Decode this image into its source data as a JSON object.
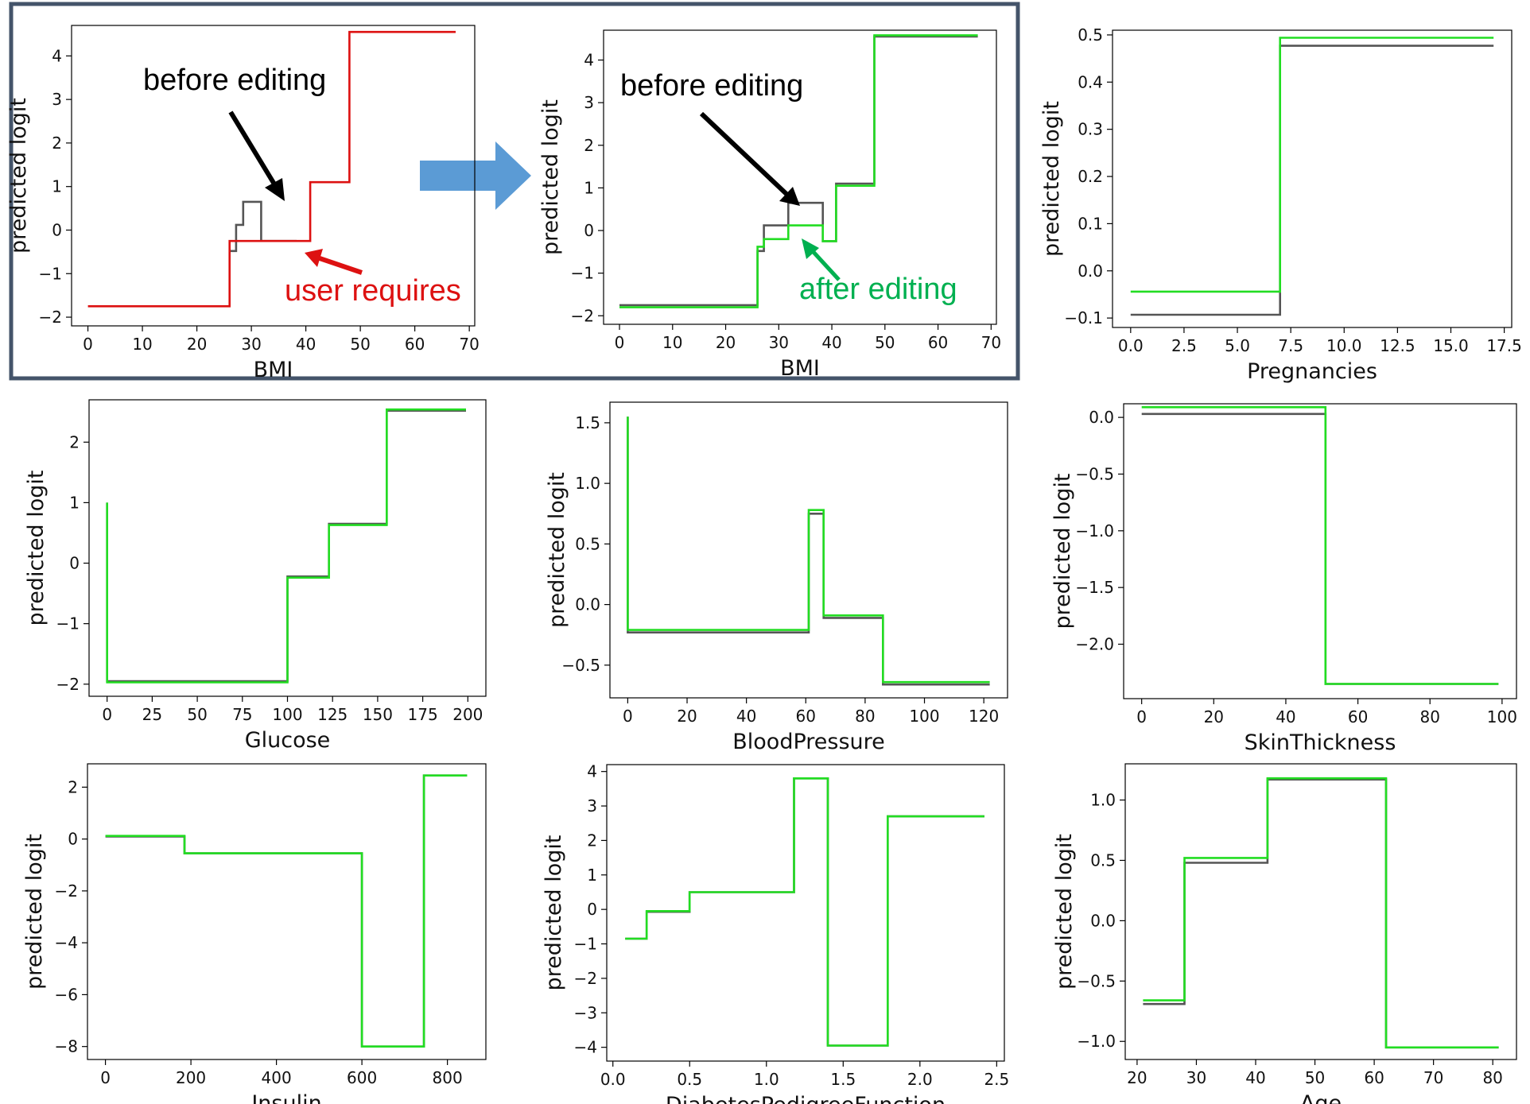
{
  "colors": {
    "before": "#555555",
    "after": "#22dd22",
    "user": "#dd1111",
    "black_arrow": "#000000",
    "green_annot": "#00b050",
    "red_annot": "#dd1111",
    "frame": "#44546a",
    "big_arrow": "#5b9bd5"
  },
  "chart_data": [
    {
      "id": "bmi_user",
      "type": "line",
      "xlabel": "BMI",
      "ylabel": "predicted logit",
      "xlim": [
        -3,
        71
      ],
      "ylim": [
        -2.2,
        4.7
      ],
      "xticks": [
        0,
        10,
        20,
        30,
        40,
        50,
        60,
        70
      ],
      "yticks": [
        -2,
        -1,
        0,
        1,
        2,
        3,
        4
      ],
      "series": [
        {
          "name": "before editing",
          "color_key": "before",
          "x": [
            26,
            27.2,
            27.2,
            28.5,
            28.5,
            31.8,
            31.8,
            38.3
          ],
          "y": [
            -0.48,
            -0.48,
            0.12,
            0.12,
            0.65,
            0.65,
            -0.25,
            -0.25
          ]
        },
        {
          "name": "user requires",
          "color_key": "user",
          "x": [
            0,
            26,
            26,
            38.3,
            38.3,
            40.8,
            40.8,
            48,
            48,
            67.5
          ],
          "y": [
            -1.75,
            -1.75,
            -0.25,
            -0.25,
            -0.25,
            -0.25,
            1.1,
            1.1,
            4.55,
            4.55
          ]
        }
      ],
      "annotations": [
        {
          "text": "before editing",
          "color_key": "black_arrow"
        },
        {
          "text": "user requires",
          "color_key": "red_annot"
        }
      ]
    },
    {
      "id": "bmi_edited",
      "type": "line",
      "xlabel": "BMI",
      "ylabel": "predicted logit",
      "xlim": [
        -3,
        71
      ],
      "ylim": [
        -2.2,
        4.7
      ],
      "xticks": [
        0,
        10,
        20,
        30,
        40,
        50,
        60,
        70
      ],
      "yticks": [
        -2,
        -1,
        0,
        1,
        2,
        3,
        4
      ],
      "series": [
        {
          "name": "before editing",
          "color_key": "before",
          "x": [
            0,
            26,
            26,
            27.2,
            27.2,
            28.5,
            28.5,
            31.8,
            31.8,
            38.3,
            38.3,
            40.8,
            40.8,
            48,
            48,
            67.5
          ],
          "y": [
            -1.75,
            -1.75,
            -0.48,
            -0.48,
            0.12,
            0.12,
            0.12,
            0.12,
            0.65,
            0.65,
            -0.25,
            -0.25,
            1.1,
            1.1,
            4.55,
            4.55
          ]
        },
        {
          "name": "after editing",
          "color_key": "after",
          "x": [
            0,
            26,
            26,
            27.2,
            27.2,
            28.5,
            28.5,
            31.8,
            31.8,
            38.3,
            38.3,
            40.8,
            40.8,
            48,
            48,
            67.5
          ],
          "y": [
            -1.8,
            -1.8,
            -0.38,
            -0.38,
            -0.2,
            -0.2,
            -0.2,
            -0.2,
            0.12,
            0.12,
            -0.25,
            -0.25,
            1.05,
            1.05,
            4.58,
            4.58
          ]
        }
      ],
      "annotations": [
        {
          "text": "before editing",
          "color_key": "black_arrow"
        },
        {
          "text": "after editing",
          "color_key": "green_annot"
        }
      ]
    },
    {
      "id": "pregnancies",
      "type": "line",
      "xlabel": "Pregnancies",
      "ylabel": "predicted logit",
      "xlim": [
        -0.85,
        17.85
      ],
      "ylim": [
        -0.12,
        0.51
      ],
      "xticks": [
        0.0,
        2.5,
        5.0,
        7.5,
        10.0,
        12.5,
        15.0,
        17.5
      ],
      "xtick_labels": [
        "0.0",
        "2.5",
        "5.0",
        "7.5",
        "10.0",
        "12.5",
        "15.0",
        "17.5"
      ],
      "yticks": [
        -0.1,
        0.0,
        0.1,
        0.2,
        0.3,
        0.4,
        0.5
      ],
      "ytick_labels": [
        "−0.1",
        "0.0",
        "0.1",
        "0.2",
        "0.3",
        "0.4",
        "0.5"
      ],
      "series": [
        {
          "name": "before editing",
          "color_key": "before",
          "x": [
            0,
            7,
            7,
            17
          ],
          "y": [
            -0.093,
            -0.093,
            0.477,
            0.477
          ]
        },
        {
          "name": "after editing",
          "color_key": "after",
          "x": [
            0,
            7,
            7,
            17
          ],
          "y": [
            -0.044,
            -0.044,
            0.494,
            0.494
          ]
        }
      ]
    },
    {
      "id": "glucose",
      "type": "line",
      "xlabel": "Glucose",
      "ylabel": "predicted logit",
      "xlim": [
        -10,
        210
      ],
      "ylim": [
        -2.2,
        2.7
      ],
      "xticks": [
        0,
        25,
        50,
        75,
        100,
        125,
        150,
        175,
        200
      ],
      "yticks": [
        -2,
        -1,
        0,
        1,
        2
      ],
      "series": [
        {
          "name": "before editing",
          "color_key": "before",
          "x": [
            0,
            0,
            100,
            100,
            123,
            123,
            155,
            155,
            199
          ],
          "y": [
            1.0,
            -1.95,
            -1.95,
            -0.22,
            -0.22,
            0.65,
            0.65,
            2.52,
            2.52
          ]
        },
        {
          "name": "after editing",
          "color_key": "after",
          "x": [
            0,
            0,
            100,
            100,
            123,
            123,
            155,
            155,
            199
          ],
          "y": [
            1.0,
            -1.97,
            -1.97,
            -0.24,
            -0.24,
            0.63,
            0.63,
            2.54,
            2.54
          ]
        }
      ]
    },
    {
      "id": "bloodpressure",
      "type": "line",
      "xlabel": "BloodPressure",
      "ylabel": "predicted logit",
      "xlim": [
        -6,
        128
      ],
      "ylim": [
        -0.77,
        1.67
      ],
      "xticks": [
        0,
        20,
        40,
        60,
        80,
        100,
        120
      ],
      "yticks": [
        -0.5,
        0.0,
        0.5,
        1.0,
        1.5
      ],
      "ytick_labels": [
        "−0.5",
        "0.0",
        "0.5",
        "1.0",
        "1.5"
      ],
      "series": [
        {
          "name": "before editing",
          "color_key": "before",
          "x": [
            0,
            0,
            61,
            61,
            66,
            66,
            86,
            86,
            122
          ],
          "y": [
            1.55,
            -0.23,
            -0.23,
            0.75,
            0.75,
            -0.11,
            -0.11,
            -0.66,
            -0.66
          ]
        },
        {
          "name": "after editing",
          "color_key": "after",
          "x": [
            0,
            0,
            61,
            61,
            66,
            66,
            86,
            86,
            122
          ],
          "y": [
            1.55,
            -0.21,
            -0.21,
            0.78,
            0.78,
            -0.09,
            -0.09,
            -0.64,
            -0.64
          ]
        }
      ]
    },
    {
      "id": "skinthickness",
      "type": "line",
      "xlabel": "SkinThickness",
      "ylabel": "predicted logit",
      "xlim": [
        -5,
        104
      ],
      "ylim": [
        -2.48,
        0.12
      ],
      "xticks": [
        0,
        20,
        40,
        60,
        80,
        100
      ],
      "yticks": [
        -2.0,
        -1.5,
        -1.0,
        -0.5,
        0.0
      ],
      "ytick_labels": [
        "−2.0",
        "−1.5",
        "−1.0",
        "−0.5",
        "0.0"
      ],
      "series": [
        {
          "name": "before editing",
          "color_key": "before",
          "x": [
            0,
            51,
            51,
            99
          ],
          "y": [
            0.03,
            0.03,
            -2.35,
            -2.35
          ]
        },
        {
          "name": "after editing",
          "color_key": "after",
          "x": [
            0,
            51,
            51,
            99
          ],
          "y": [
            0.09,
            0.09,
            -2.35,
            -2.35
          ]
        }
      ]
    },
    {
      "id": "insulin",
      "type": "line",
      "xlabel": "Insulin",
      "ylabel": "predicted logit",
      "xlim": [
        -42,
        890
      ],
      "ylim": [
        -8.5,
        2.9
      ],
      "xticks": [
        0,
        200,
        400,
        600,
        800
      ],
      "yticks": [
        -8,
        -6,
        -4,
        -2,
        0,
        2
      ],
      "series": [
        {
          "name": "before editing",
          "color_key": "before",
          "x": [
            0,
            185,
            185,
            600,
            600,
            745,
            745,
            846
          ],
          "y": [
            0.1,
            0.1,
            -0.55,
            -0.55,
            -8.0,
            -8.0,
            2.45,
            2.45
          ]
        },
        {
          "name": "after editing",
          "color_key": "after",
          "x": [
            0,
            185,
            185,
            600,
            600,
            745,
            745,
            846
          ],
          "y": [
            0.12,
            0.12,
            -0.55,
            -0.55,
            -8.0,
            -8.0,
            2.45,
            2.45
          ]
        }
      ]
    },
    {
      "id": "dpf",
      "type": "line",
      "xlabel": "DiabetesPedigreeFunction",
      "ylabel": "predicted logit",
      "xlim": [
        -0.04,
        2.55
      ],
      "ylim": [
        -4.4,
        4.2
      ],
      "xticks": [
        0.0,
        0.5,
        1.0,
        1.5,
        2.0,
        2.5
      ],
      "xtick_labels": [
        "0.0",
        "0.5",
        "1.0",
        "1.5",
        "2.0",
        "2.5"
      ],
      "yticks": [
        -4,
        -3,
        -2,
        -1,
        0,
        1,
        2,
        3,
        4
      ],
      "series": [
        {
          "name": "before editing",
          "color_key": "before",
          "x": [
            0.08,
            0.22,
            0.22,
            0.5,
            0.5,
            1.18,
            1.18,
            1.4,
            1.4,
            1.79,
            1.79,
            2.42
          ],
          "y": [
            -0.85,
            -0.85,
            -0.07,
            -0.07,
            0.5,
            0.5,
            3.8,
            3.8,
            -3.95,
            -3.95,
            2.7,
            2.7
          ]
        },
        {
          "name": "after editing",
          "color_key": "after",
          "x": [
            0.08,
            0.22,
            0.22,
            0.5,
            0.5,
            1.18,
            1.18,
            1.4,
            1.4,
            1.79,
            1.79,
            2.42
          ],
          "y": [
            -0.85,
            -0.85,
            -0.05,
            -0.05,
            0.5,
            0.5,
            3.8,
            3.8,
            -3.95,
            -3.95,
            2.7,
            2.7
          ]
        }
      ]
    },
    {
      "id": "age",
      "type": "line",
      "xlabel": "Age",
      "ylabel": "predicted logit",
      "xlim": [
        18,
        84
      ],
      "ylim": [
        -1.15,
        1.3
      ],
      "xticks": [
        20,
        30,
        40,
        50,
        60,
        70,
        80
      ],
      "yticks": [
        -1.0,
        -0.5,
        0.0,
        0.5,
        1.0
      ],
      "ytick_labels": [
        "−1.0",
        "−0.5",
        "0.0",
        "0.5",
        "1.0"
      ],
      "series": [
        {
          "name": "before editing",
          "color_key": "before",
          "x": [
            21,
            28,
            28,
            42,
            42,
            62,
            62,
            81
          ],
          "y": [
            -0.69,
            -0.69,
            0.48,
            0.48,
            1.17,
            1.17,
            -1.05,
            -1.05
          ]
        },
        {
          "name": "after editing",
          "color_key": "after",
          "x": [
            21,
            28,
            28,
            42,
            42,
            62,
            62,
            81
          ],
          "y": [
            -0.66,
            -0.66,
            0.52,
            0.52,
            1.18,
            1.18,
            -1.05,
            -1.05
          ]
        }
      ]
    }
  ]
}
